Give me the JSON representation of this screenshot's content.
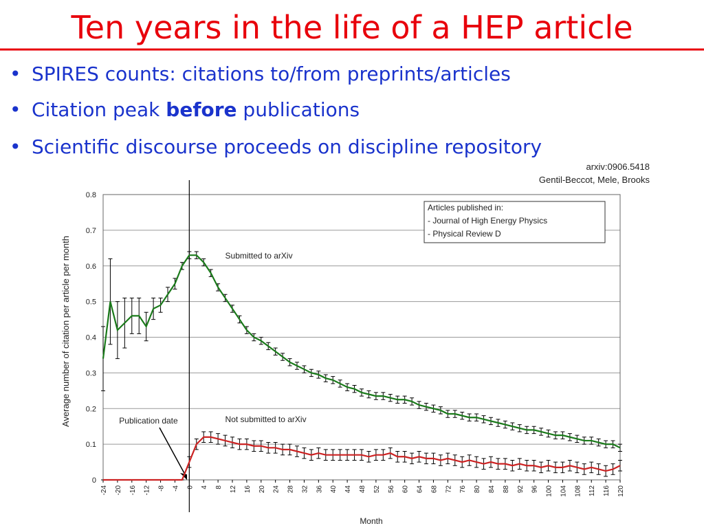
{
  "slide": {
    "title": "Ten years in the life of a HEP article",
    "bullets": [
      [
        "SPIRES counts: citations to/from preprints/articles"
      ],
      [
        "Citation peak ",
        "before",
        " publications"
      ],
      [
        "Scientific discourse proceeds on discipline repository"
      ]
    ]
  },
  "chart_data": {
    "type": "line",
    "credits": [
      "arxiv:0906.5418",
      "Gentil-Beccot, Mele, Brooks"
    ],
    "x_label": "Month",
    "y_label": "Average number of citation per article per month",
    "annotations": [
      "Publication date"
    ],
    "legend_box": [
      "Articles published in:",
      "- Journal of High Energy Physics",
      "- Physical Review D"
    ],
    "x": [
      -24,
      -22,
      -20,
      -18,
      -16,
      -14,
      -12,
      -10,
      -8,
      -6,
      -4,
      -2,
      0,
      2,
      4,
      6,
      8,
      10,
      12,
      14,
      16,
      18,
      20,
      22,
      24,
      26,
      28,
      30,
      32,
      34,
      36,
      38,
      40,
      42,
      44,
      46,
      48,
      50,
      52,
      54,
      56,
      58,
      60,
      62,
      64,
      66,
      68,
      70,
      72,
      74,
      76,
      78,
      80,
      82,
      84,
      86,
      88,
      90,
      92,
      94,
      96,
      98,
      100,
      102,
      104,
      106,
      108,
      110,
      112,
      114,
      116,
      118,
      120
    ],
    "series": [
      {
        "name": "Submitted to arXiv",
        "color": "#1a7a1a",
        "values": [
          0.34,
          0.5,
          0.42,
          0.44,
          0.46,
          0.46,
          0.43,
          0.48,
          0.49,
          0.52,
          0.55,
          0.6,
          0.63,
          0.63,
          0.61,
          0.58,
          0.54,
          0.51,
          0.48,
          0.45,
          0.42,
          0.4,
          0.39,
          0.375,
          0.36,
          0.345,
          0.33,
          0.32,
          0.31,
          0.3,
          0.295,
          0.285,
          0.28,
          0.27,
          0.26,
          0.255,
          0.245,
          0.24,
          0.235,
          0.235,
          0.23,
          0.225,
          0.225,
          0.22,
          0.21,
          0.205,
          0.2,
          0.195,
          0.185,
          0.185,
          0.18,
          0.175,
          0.175,
          0.17,
          0.165,
          0.16,
          0.155,
          0.15,
          0.145,
          0.14,
          0.14,
          0.135,
          0.13,
          0.125,
          0.125,
          0.12,
          0.115,
          0.11,
          0.11,
          0.105,
          0.1,
          0.1,
          0.09
        ],
        "errors": [
          0.09,
          0.12,
          0.08,
          0.07,
          0.05,
          0.05,
          0.04,
          0.03,
          0.02,
          0.02,
          0.015,
          0.01,
          0.01,
          0.01,
          0.01,
          0.01,
          0.01,
          0.01,
          0.01,
          0.01,
          0.01,
          0.01,
          0.01,
          0.01,
          0.01,
          0.01,
          0.01,
          0.01,
          0.01,
          0.01,
          0.01,
          0.01,
          0.01,
          0.01,
          0.01,
          0.01,
          0.01,
          0.01,
          0.01,
          0.01,
          0.01,
          0.01,
          0.01,
          0.01,
          0.01,
          0.01,
          0.01,
          0.01,
          0.01,
          0.01,
          0.01,
          0.01,
          0.01,
          0.01,
          0.01,
          0.01,
          0.01,
          0.01,
          0.01,
          0.01,
          0.01,
          0.01,
          0.01,
          0.01,
          0.01,
          0.01,
          0.01,
          0.01,
          0.01,
          0.01,
          0.01,
          0.01,
          0.01
        ]
      },
      {
        "name": "Not submitted to arXiv",
        "color": "#cc2222",
        "values": [
          0,
          0,
          0,
          0,
          0,
          0,
          0,
          0,
          0,
          0,
          0,
          0,
          0.05,
          0.1,
          0.12,
          0.12,
          0.115,
          0.11,
          0.105,
          0.1,
          0.1,
          0.095,
          0.095,
          0.09,
          0.09,
          0.085,
          0.085,
          0.08,
          0.075,
          0.07,
          0.075,
          0.07,
          0.07,
          0.07,
          0.07,
          0.07,
          0.07,
          0.065,
          0.07,
          0.07,
          0.075,
          0.065,
          0.065,
          0.06,
          0.065,
          0.06,
          0.06,
          0.055,
          0.06,
          0.055,
          0.05,
          0.055,
          0.05,
          0.045,
          0.05,
          0.045,
          0.045,
          0.04,
          0.045,
          0.04,
          0.04,
          0.035,
          0.04,
          0.035,
          0.035,
          0.04,
          0.035,
          0.03,
          0.035,
          0.03,
          0.025,
          0.03,
          0.04
        ],
        "errors": [
          0,
          0,
          0,
          0,
          0,
          0,
          0,
          0,
          0,
          0,
          0,
          0,
          0.015,
          0.015,
          0.015,
          0.015,
          0.015,
          0.015,
          0.015,
          0.015,
          0.015,
          0.015,
          0.015,
          0.015,
          0.015,
          0.015,
          0.015,
          0.015,
          0.015,
          0.015,
          0.015,
          0.015,
          0.015,
          0.015,
          0.015,
          0.015,
          0.015,
          0.015,
          0.015,
          0.015,
          0.015,
          0.015,
          0.015,
          0.015,
          0.015,
          0.015,
          0.015,
          0.015,
          0.015,
          0.015,
          0.015,
          0.015,
          0.015,
          0.015,
          0.015,
          0.015,
          0.015,
          0.015,
          0.015,
          0.015,
          0.015,
          0.015,
          0.015,
          0.015,
          0.015,
          0.015,
          0.015,
          0.015,
          0.015,
          0.015,
          0.015,
          0.015,
          0.015
        ]
      }
    ],
    "xlim": [
      -24,
      120
    ],
    "ylim": [
      0,
      0.8
    ],
    "xticks": [
      -24,
      -20,
      -16,
      -12,
      -8,
      -4,
      0,
      4,
      8,
      12,
      16,
      20,
      24,
      28,
      32,
      36,
      40,
      44,
      48,
      52,
      56,
      60,
      64,
      68,
      72,
      76,
      80,
      84,
      88,
      92,
      96,
      100,
      104,
      108,
      112,
      116,
      120
    ],
    "yticks": [
      0,
      0.1,
      0.2,
      0.3,
      0.4,
      0.5,
      0.6,
      0.7,
      0.8
    ],
    "grid": true
  }
}
